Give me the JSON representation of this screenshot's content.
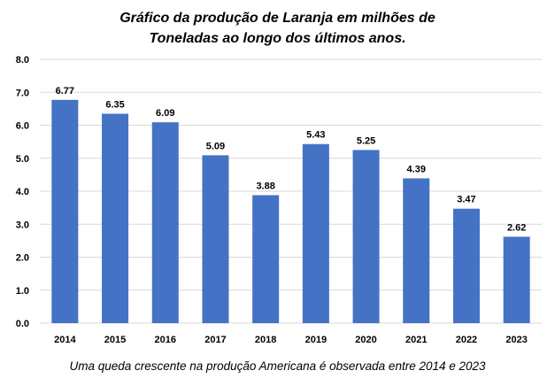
{
  "chart_data": {
    "type": "bar",
    "title_lines": [
      "Gráfico da produção de Laranja em milhões de",
      "Toneladas ao longo dos últimos anos."
    ],
    "categories": [
      "2014",
      "2015",
      "2016",
      "2017",
      "2018",
      "2019",
      "2020",
      "2021",
      "2022",
      "2023"
    ],
    "values": [
      6.77,
      6.35,
      6.09,
      5.09,
      3.88,
      5.43,
      5.25,
      4.39,
      3.47,
      2.62
    ],
    "value_labels": [
      "6.77",
      "6.35",
      "6.09",
      "5.09",
      "3.88",
      "5.43",
      "5.25",
      "4.39",
      "3.47",
      "2.62"
    ],
    "y_ticks": [
      "0.0",
      "1.0",
      "2.0",
      "3.0",
      "4.0",
      "5.0",
      "6.0",
      "7.0",
      "8.0"
    ],
    "ylim": [
      0,
      8
    ],
    "grid": true,
    "legend": "none",
    "bar_color": "#4472c4",
    "grid_color": "#d9d9d9",
    "caption": "Uma queda crescente na produção Americana é observada entre 2014 e 2023"
  }
}
